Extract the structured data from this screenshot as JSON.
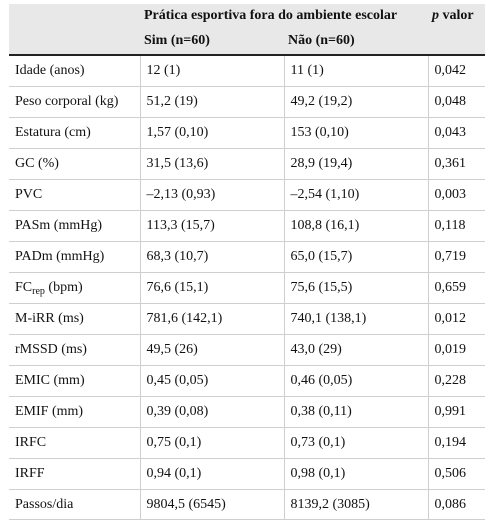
{
  "header": {
    "group_title": "Prática esportiva fora do ambiente escolar",
    "pvalue_label": "p",
    "pvalue_word": "valor",
    "col_sim": "Sim (n=60)",
    "col_nao": "Não (n=60)"
  },
  "rows": [
    {
      "label": "Idade (anos)",
      "sim": "12 (1)",
      "nao": "11 (1)",
      "p": "0,042"
    },
    {
      "label": "Peso corporal (kg)",
      "sim": "51,2 (19)",
      "nao": "49,2 (19,2)",
      "p": "0,048"
    },
    {
      "label": "Estatura (cm)",
      "sim": "1,57 (0,10)",
      "nao": "153 (0,10)",
      "p": "0,043"
    },
    {
      "label": "GC (%)",
      "sim": "31,5 (13,6)",
      "nao": "28,9 (19,4)",
      "p": "0,361"
    },
    {
      "label": "PVC",
      "sim": "–2,13 (0,93)",
      "nao": "–2,54 (1,10)",
      "p": "0,003"
    },
    {
      "label": "PASm (mmHg)",
      "sim": "113,3 (15,7)",
      "nao": "108,8 (16,1)",
      "p": "0,118"
    },
    {
      "label": "PADm (mmHg)",
      "sim": "68,3 (10,7)",
      "nao": "65,0 (15,7)",
      "p": "0,719"
    },
    {
      "label_main": "FC",
      "label_sub": "rep",
      "label_unit": " (bpm)",
      "sim": "76,6 (15,1)",
      "nao": "75,6 (15,5)",
      "p": "0,659"
    },
    {
      "label": "M-iRR (ms)",
      "sim": "781,6 (142,1)",
      "nao": "740,1 (138,1)",
      "p": "0,012"
    },
    {
      "label": "rMSSD (ms)",
      "sim": "49,5 (26)",
      "nao": "43,0 (29)",
      "p": "0,019"
    },
    {
      "label": "EMIC (mm)",
      "sim": "0,45 (0,05)",
      "nao": "0,46 (0,05)",
      "p": "0,228"
    },
    {
      "label": "EMIF (mm)",
      "sim": "0,39 (0,08)",
      "nao": "0,38 (0,11)",
      "p": "0,991"
    },
    {
      "label": "IRFC",
      "sim": "0,75 (0,1)",
      "nao": "0,73 (0,1)",
      "p": "0,194"
    },
    {
      "label": "IRFF",
      "sim": "0,94 (0,1)",
      "nao": "0,98 (0,1)",
      "p": "0,506"
    },
    {
      "label": "Passos/dia",
      "sim": "9804,5 (6545)",
      "nao": "8139,2 (3085)",
      "p": "0,086"
    }
  ]
}
